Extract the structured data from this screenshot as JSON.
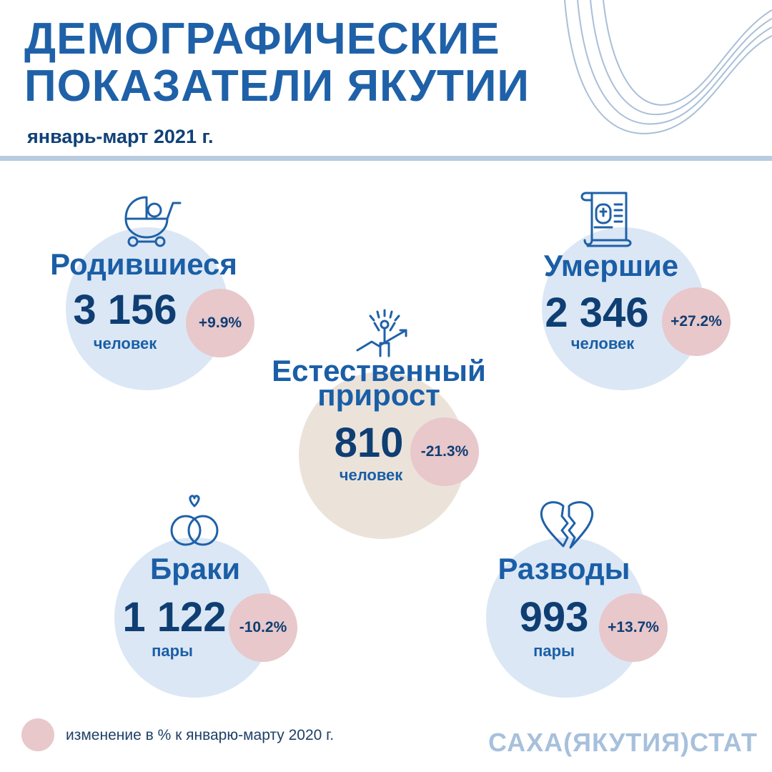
{
  "header": {
    "title_line1": "ДЕМОГРАФИЧЕСКИЕ",
    "title_line2": "ПОКАЗАТЕЛИ ЯКУТИИ",
    "period": "январь-март 2021 г."
  },
  "births": {
    "title": "Родившиеся",
    "value": "3 156",
    "unit": "человек",
    "change": "+9.9%",
    "icon": "baby-stroller-icon"
  },
  "deaths": {
    "title": "Умершие",
    "value": "2 346",
    "unit": "человек",
    "change": "+27.2%",
    "icon": "death-certificate-icon"
  },
  "natural_growth": {
    "title_line1": "Естественный",
    "title_line2": "прирост",
    "value": "810",
    "unit": "человек",
    "change": "-21.3%",
    "icon": "person-growth-icon"
  },
  "marriages": {
    "title": "Браки",
    "value": "1 122",
    "unit": "пары",
    "change": "-10.2%",
    "icon": "wedding-rings-icon"
  },
  "divorces": {
    "title": "Разводы",
    "value": "993",
    "unit": "пары",
    "change": "+13.7%",
    "icon": "broken-heart-icon"
  },
  "legend": {
    "text": "изменение в % к январю-марту 2020 г."
  },
  "footer": {
    "brand": "САХА(ЯКУТИЯ)СТАТ"
  },
  "colors": {
    "title_blue": "#1f61a8",
    "dark_navy": "#0f3e73",
    "circle_blue": "#dbe7f5",
    "circle_beige": "#ebe3da",
    "change_pink": "#e8c8cb",
    "brand_light": "#a7c0dc"
  }
}
